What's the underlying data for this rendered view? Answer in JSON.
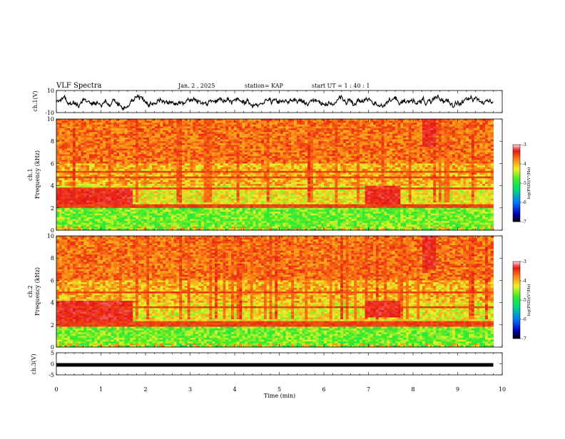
{
  "header": {
    "title": "VLF Spectra",
    "date": "Jan. 2 , 2025",
    "station": "station= KAP",
    "start": "start UT = 1 : 40 : 1"
  },
  "colorbar_label": "log(PSD)(V²/Hz)",
  "chart_data": [
    {
      "type": "line",
      "name": "ch1-waveform",
      "ylabel": "ch.1(V)",
      "ylim": [
        -10,
        10
      ],
      "xlim": [
        0,
        10
      ],
      "yticks": [
        "10",
        "-10"
      ],
      "x_end": 9.8,
      "description_values": {
        "mean": 0,
        "typical_amplitude": 3
      }
    },
    {
      "type": "heatmap",
      "name": "ch1-spectrogram",
      "ylabel": "ch.1\nFrequency (kHz)",
      "ylim": [
        0,
        10
      ],
      "xlim": [
        0,
        10
      ],
      "yticks": [
        "10",
        "8",
        "6",
        "4",
        "2",
        "0"
      ],
      "x_end": 9.8,
      "colorbar": {
        "min": -7,
        "max": -3,
        "ticks": [
          "-3",
          "-4",
          "-5",
          "-6",
          "-7"
        ]
      },
      "bands_khz": [
        5.3,
        4.7,
        3.8,
        2.3,
        2.1
      ],
      "intense_regions": [
        {
          "x": [
            0,
            1.7
          ],
          "freq_khz": [
            2.2,
            3.8
          ]
        },
        {
          "x": [
            6.9,
            7.7
          ],
          "freq_khz": [
            2.3,
            4.0
          ]
        },
        {
          "x": [
            8.2,
            8.5
          ],
          "freq_khz": [
            7.5,
            10
          ]
        }
      ]
    },
    {
      "type": "heatmap",
      "name": "ch2-spectrogram",
      "ylabel": "ch.2\nFrequency (kHz)",
      "ylim": [
        0,
        10
      ],
      "xlim": [
        0,
        10
      ],
      "yticks": [
        "10",
        "8",
        "6",
        "4",
        "2",
        "0"
      ],
      "x_end": 9.8,
      "colorbar": {
        "min": -7,
        "max": -3,
        "ticks": [
          "-3",
          "-4",
          "-5",
          "-6",
          "-7"
        ]
      },
      "bands_khz": [
        4.9,
        3.6,
        2.2,
        2.0
      ],
      "intense_regions": [
        {
          "x": [
            0,
            1.7
          ],
          "freq_khz": [
            2.4,
            4.1
          ]
        },
        {
          "x": [
            6.9,
            7.7
          ],
          "freq_khz": [
            2.6,
            4.1
          ]
        },
        {
          "x": [
            8.2,
            8.5
          ],
          "freq_khz": [
            7.0,
            10
          ]
        }
      ]
    },
    {
      "type": "line",
      "name": "ch3-signal",
      "ylabel": "ch.3(V)",
      "ylim": [
        -5,
        5
      ],
      "xlim": [
        0,
        10
      ],
      "yticks": [
        "5",
        "0",
        "-5"
      ],
      "x_end": 9.8,
      "level": -0.5
    }
  ],
  "x_axis": {
    "label": "Time (min)",
    "ticks": [
      "0",
      "1",
      "2",
      "3",
      "4",
      "5",
      "6",
      "7",
      "8",
      "9",
      "10"
    ]
  }
}
